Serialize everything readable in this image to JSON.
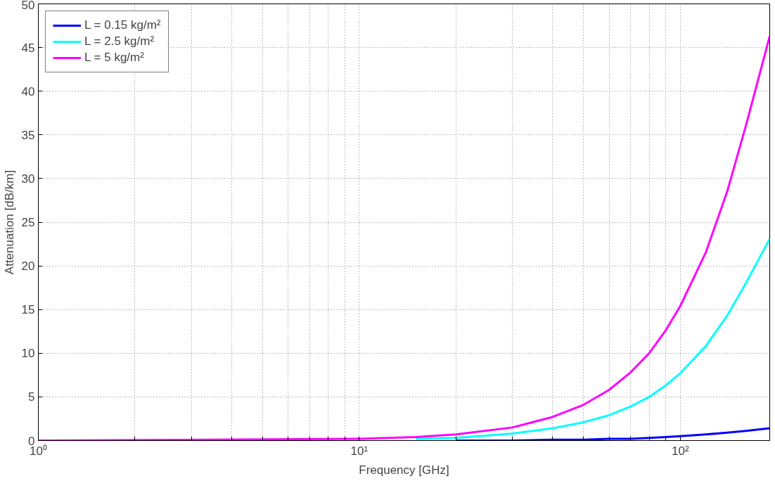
{
  "chart_data": {
    "type": "line",
    "xlabel": "Frequency [GHz]",
    "ylabel": "Attenuation [dB/km]",
    "log": "x",
    "xlim": [
      1,
      190
    ],
    "ylim": [
      0,
      50
    ],
    "xticks": [
      {
        "value": 1,
        "label": "10⁰"
      },
      {
        "value": 2,
        "label": null
      },
      {
        "value": 3,
        "label": null
      },
      {
        "value": 4,
        "label": null
      },
      {
        "value": 5,
        "label": null
      },
      {
        "value": 6,
        "label": null
      },
      {
        "value": 7,
        "label": null
      },
      {
        "value": 8,
        "label": null
      },
      {
        "value": 9,
        "label": null
      },
      {
        "value": 10,
        "label": "10¹"
      },
      {
        "value": 20,
        "label": null
      },
      {
        "value": 30,
        "label": null
      },
      {
        "value": 40,
        "label": null
      },
      {
        "value": 50,
        "label": null
      },
      {
        "value": 60,
        "label": null
      },
      {
        "value": 70,
        "label": null
      },
      {
        "value": 80,
        "label": null
      },
      {
        "value": 90,
        "label": null
      },
      {
        "value": 100,
        "label": "10²"
      }
    ],
    "yticks": [
      0,
      5,
      10,
      15,
      20,
      25,
      30,
      35,
      40,
      45,
      50
    ],
    "grid": true,
    "legend": "top left",
    "line_style": "solid",
    "marker": "none",
    "x": [
      1,
      10,
      15,
      20,
      30,
      40,
      50,
      60,
      70,
      80,
      90,
      100,
      120,
      140,
      160,
      190
    ],
    "series": [
      {
        "name": "L = 0.15 kg/m²",
        "color": "#0000ff",
        "values": [
          null,
          null,
          null,
          0,
          0,
          0.1,
          0.1,
          0.2,
          0.2,
          0.3,
          0.4,
          0.5,
          0.7,
          0.9,
          1.1,
          1.4
        ]
      },
      {
        "name": "L = 2.5 kg/m²",
        "color": "#00ffff",
        "values": [
          null,
          null,
          0.2,
          0.3,
          0.8,
          1.4,
          2.1,
          2.9,
          3.9,
          5,
          6.3,
          7.7,
          10.8,
          14.3,
          18,
          23.1
        ]
      },
      {
        "name": "L = 5 kg/m²",
        "color": "#ff00ff",
        "values": [
          0,
          0.2,
          0.4,
          0.7,
          1.5,
          2.7,
          4.1,
          5.8,
          7.8,
          10,
          12.6,
          15.4,
          21.5,
          28.5,
          36,
          46.3
        ]
      }
    ]
  }
}
